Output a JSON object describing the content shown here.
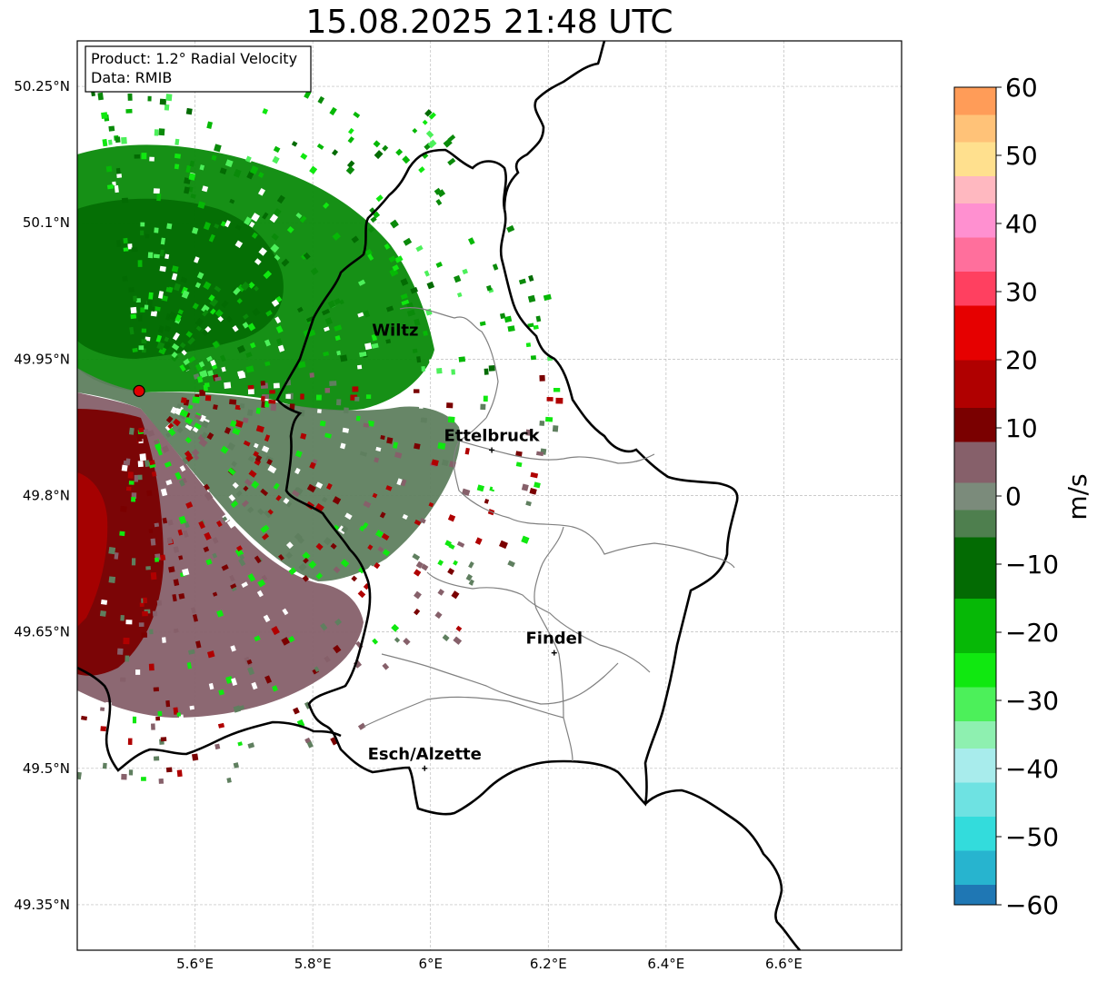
{
  "title": "15.08.2025 21:48 UTC",
  "infobox": {
    "product": "Product: 1.2° Radial Velocity",
    "source": "Data: RMIB"
  },
  "axes": {
    "lat_ticks": [
      {
        "value": 50.25,
        "label": "50.25°N"
      },
      {
        "value": 50.1,
        "label": "50.1°N"
      },
      {
        "value": 49.95,
        "label": "49.95°N"
      },
      {
        "value": 49.8,
        "label": "49.8°N"
      },
      {
        "value": 49.65,
        "label": "49.65°N"
      },
      {
        "value": 49.5,
        "label": "49.5°N"
      },
      {
        "value": 49.35,
        "label": "49.35°N"
      }
    ],
    "lon_ticks": [
      {
        "value": 5.6,
        "label": "5.6°E"
      },
      {
        "value": 5.8,
        "label": "5.8°E"
      },
      {
        "value": 6.0,
        "label": "6°E"
      },
      {
        "value": 6.2,
        "label": "6.2°E"
      },
      {
        "value": 6.4,
        "label": "6.4°E"
      },
      {
        "value": 6.6,
        "label": "6.6°E"
      }
    ],
    "lon_range": [
      5.4,
      6.8
    ],
    "lat_range": [
      49.3,
      50.3
    ]
  },
  "cities": [
    {
      "name": "Wiltz",
      "lon": 5.94,
      "lat": 49.966,
      "marker": false
    },
    {
      "name": "Ettelbruck",
      "lon": 6.104,
      "lat": 49.85,
      "marker": true
    },
    {
      "name": "Findel",
      "lon": 6.21,
      "lat": 49.627,
      "marker": true
    },
    {
      "name": "Esch/Alzette",
      "lon": 5.99,
      "lat": 49.5,
      "marker": true
    }
  ],
  "radar": {
    "lon": 5.505,
    "lat": 49.915,
    "color": "#e00000"
  },
  "colorbar": {
    "label": "m/s",
    "min": -60,
    "max": 60,
    "ticks": [
      {
        "value": 60,
        "label": "60"
      },
      {
        "value": 50,
        "label": "50"
      },
      {
        "value": 40,
        "label": "40"
      },
      {
        "value": 30,
        "label": "30"
      },
      {
        "value": 20,
        "label": "20"
      },
      {
        "value": 10,
        "label": "10"
      },
      {
        "value": 0,
        "label": "0"
      },
      {
        "value": -10,
        "label": "−10"
      },
      {
        "value": -20,
        "label": "−20"
      },
      {
        "value": -30,
        "label": "−30"
      },
      {
        "value": -40,
        "label": "−40"
      },
      {
        "value": -50,
        "label": "−50"
      },
      {
        "value": -60,
        "label": "−60"
      }
    ],
    "stops": [
      {
        "from": -60,
        "to": -57,
        "color": "#1f77b4"
      },
      {
        "from": -57,
        "to": -52,
        "color": "#27b4cf"
      },
      {
        "from": -52,
        "to": -47,
        "color": "#33dcdc"
      },
      {
        "from": -47,
        "to": -42,
        "color": "#6ee2e2"
      },
      {
        "from": -42,
        "to": -37,
        "color": "#a8ecec"
      },
      {
        "from": -37,
        "to": -33,
        "color": "#8ef0b0"
      },
      {
        "from": -33,
        "to": -28,
        "color": "#4cf05a"
      },
      {
        "from": -28,
        "to": -23,
        "color": "#10e810"
      },
      {
        "from": -23,
        "to": -15,
        "color": "#06b806"
      },
      {
        "from": -15,
        "to": -6,
        "color": "#036b03"
      },
      {
        "from": -6,
        "to": -2,
        "color": "#4e7f4e"
      },
      {
        "from": -2,
        "to": 2,
        "color": "#7b8b7b"
      },
      {
        "from": 2,
        "to": 8,
        "color": "#86606a"
      },
      {
        "from": 8,
        "to": 13,
        "color": "#7a0000"
      },
      {
        "from": 13,
        "to": 20,
        "color": "#b00000"
      },
      {
        "from": 20,
        "to": 28,
        "color": "#e60000"
      },
      {
        "from": 28,
        "to": 33,
        "color": "#ff4060"
      },
      {
        "from": 33,
        "to": 38,
        "color": "#ff6f9c"
      },
      {
        "from": 38,
        "to": 43,
        "color": "#ff90d0"
      },
      {
        "from": 43,
        "to": 47,
        "color": "#ffb8c0"
      },
      {
        "from": 47,
        "to": 52,
        "color": "#ffe08e"
      },
      {
        "from": 52,
        "to": 56,
        "color": "#ffc278"
      },
      {
        "from": 56,
        "to": 60,
        "color": "#ff9c58"
      }
    ]
  },
  "colors": {
    "border": "#000000",
    "admin": "#808080",
    "grid": "#bbbbbb",
    "outbound_dark": "#7a0000",
    "outbound_mid": "#86606a",
    "inbound_dark": "#036b03",
    "inbound_mid": "#06b806",
    "zero_band": "#5f7f5f"
  }
}
